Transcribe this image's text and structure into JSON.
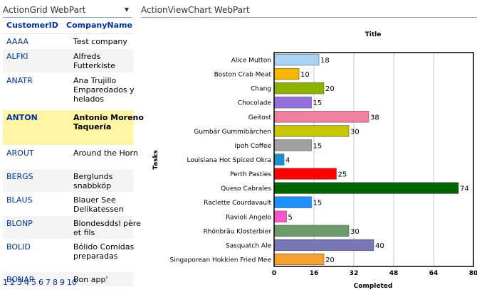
{
  "left_part": {
    "title": "ActionGrid WebPart",
    "columns": {
      "id": "CustomerID",
      "name": "CompanyName"
    },
    "rows": [
      {
        "id": "AAAA",
        "name": "Test company"
      },
      {
        "id": "ALFKI",
        "name": "Alfreds Futterkiste"
      },
      {
        "id": "ANATR",
        "name": "Ana Trujillo Emparedados y helados"
      },
      {
        "id": "ANTON",
        "name": "Antonio Moreno Taquería"
      },
      {
        "id": "AROUT",
        "name": "Around the Horn"
      },
      {
        "id": "BERGS",
        "name": "Berglunds snabbköp"
      },
      {
        "id": "BLAUS",
        "name": "Blauer See Delikatessen"
      },
      {
        "id": "BLONP",
        "name": "Blondesddsl père et fils"
      },
      {
        "id": "BOLID",
        "name": "Bólido Comidas preparadas"
      },
      {
        "id": "BONAP",
        "name": "Bon app'"
      }
    ],
    "selected_row": 3,
    "pages": [
      "1",
      "2",
      "3",
      "4",
      "5",
      "6",
      "7",
      "8",
      "9",
      "10"
    ]
  },
  "right_part": {
    "title": "ActionViewChart WebPart"
  },
  "chart_data": {
    "type": "bar",
    "orientation": "horizontal",
    "title": "Title",
    "xlabel": "Completed",
    "ylabel": "Tasks",
    "xlim": [
      0,
      80
    ],
    "xticks": [
      "0",
      "16",
      "32",
      "48",
      "64",
      "80"
    ],
    "grid": true,
    "categories": [
      "Alice Mutton",
      "Boston Crab Meat",
      "Chang",
      "Chocolade",
      "Geitost",
      "Gumbär Gummibärchen",
      "Ipoh Coffee",
      "Louisiana Hot Spiced Okra",
      "Perth Pasties",
      "Queso Cabrales",
      "Raclette Courdavault",
      "Ravioli Angelo",
      "Rhönbräu Klosterbier",
      "Sasquatch Ale",
      "Singaporean Hokkien Fried Mee"
    ],
    "values": [
      18,
      10,
      20,
      15,
      38,
      30,
      15,
      4,
      25,
      74,
      15,
      5,
      30,
      40,
      20
    ],
    "value_labels": [
      "18",
      "10",
      "20",
      "15",
      "38",
      "30",
      "15",
      "4",
      "25",
      "74",
      "15",
      "5",
      "30",
      "40",
      "20"
    ],
    "colors": [
      "#aad4f5",
      "#f5b800",
      "#8db300",
      "#9370db",
      "#f080a0",
      "#c8c800",
      "#a0a0a0",
      "#1e90c8",
      "#ff0000",
      "#006400",
      "#1e90ff",
      "#ff55cc",
      "#6b9b6b",
      "#7878b8",
      "#f5a030"
    ]
  }
}
